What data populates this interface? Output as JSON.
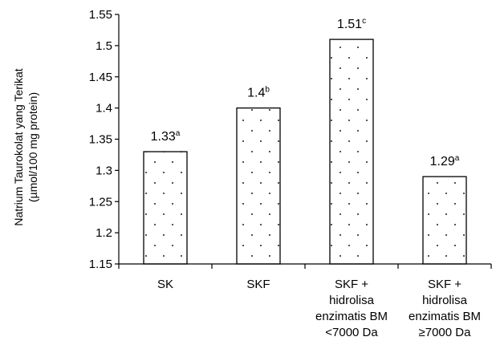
{
  "chart_data": {
    "type": "bar",
    "title": "",
    "xlabel": "",
    "ylabel_lines": [
      "Natrium  Taurokolat yang Terikat",
      "(µmol/100 mg protein)"
    ],
    "ylim": [
      1.15,
      1.55
    ],
    "yticks": [
      "1.15",
      "1.2",
      "1.25",
      "1.3",
      "1.35",
      "1.4",
      "1.45",
      "1.5",
      "1.55"
    ],
    "grid": false,
    "legend": "none",
    "bar_pattern": "dotted",
    "categories": [
      [
        "SK"
      ],
      [
        "SKF"
      ],
      [
        "SKF +",
        "hidrolisa",
        "enzimatis BM",
        "<7000 Da"
      ],
      [
        "SKF +",
        "hidrolisa",
        "enzimatis BM",
        "≥7000 Da"
      ]
    ],
    "values": [
      1.33,
      1.4,
      1.51,
      1.29
    ],
    "data_labels": [
      {
        "value": "1.33",
        "letter": "a"
      },
      {
        "value": "1.4",
        "letter": "b"
      },
      {
        "value": "1.51",
        "letter": "c"
      },
      {
        "value": "1.29",
        "letter": "a"
      }
    ]
  }
}
